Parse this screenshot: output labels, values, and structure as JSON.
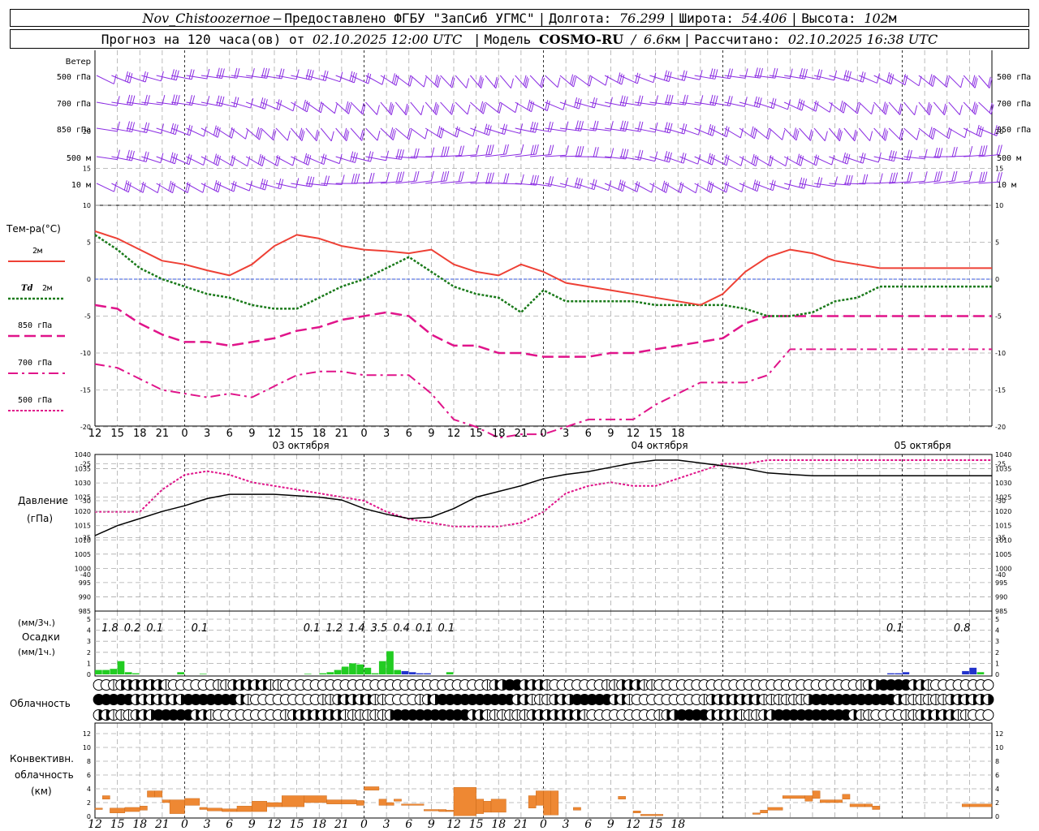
{
  "header": {
    "station": "Nov_Chistoozernoe",
    "dash": "–",
    "provider": "Предоставлено ФГБУ \"ЗапСиб УГМС\"",
    "lon_label": "Долгота:",
    "lon_value": "76.299",
    "lat_label": "Широта:",
    "lat_value": "54.406",
    "alt_label": "Высота:",
    "alt_value": "102",
    "alt_unit": "м",
    "forecast_label": "Прогноз на 120 часа(ов) от",
    "forecast_start": "02.10.2025 12:00 UTC",
    "model_label": "Модель",
    "model_name": "COSMO-RU",
    "model_res": "6.6",
    "model_res_unit": "км",
    "calc_label": "Рассчитано:",
    "calc_time": "02.10.2025 16:38 UTC"
  },
  "colors": {
    "wind": "#8a2be2",
    "t2m": "#ee4035",
    "td2m": "#1a7a1a",
    "t850": "#e0148a",
    "t700": "#e0148a",
    "t500": "#e0148a",
    "zero_line": "#3355dd",
    "pressure": "#000000",
    "precip_rain": "#22cc22",
    "precip_snow": "#2233cc",
    "conv_cloud": "#ee8833",
    "grid": "#aaaaaa"
  },
  "axes": {
    "hour_ticks": [
      "12",
      "15",
      "18",
      "21",
      "0",
      "3",
      "6",
      "9",
      "12",
      "15",
      "18",
      "21",
      "0",
      "3",
      "6",
      "9",
      "12",
      "15",
      "18",
      "21",
      "0",
      "3",
      "6",
      "9",
      "12",
      "15",
      "18"
    ],
    "day_labels": [
      "03 октября",
      "04 октября",
      "05 октября"
    ]
  },
  "wind_panel": {
    "title": "Ветер",
    "levels": [
      "500 гПа",
      "700 гПа",
      "850 гПа",
      "500  м",
      "10   м"
    ]
  },
  "temp_panel": {
    "title": "Тем-ра(°С)",
    "ticks": [
      "20",
      "15",
      "10",
      "5",
      "0",
      "-5",
      "-10",
      "-15",
      "-20",
      "-25",
      "-30",
      "-35",
      "-40"
    ],
    "legend": [
      {
        "label": "2м",
        "key": "t2m"
      },
      {
        "label_em": "Td",
        "label": "2м",
        "key": "td2m"
      },
      {
        "label": "850 гПа",
        "key": "t850"
      },
      {
        "label": "700 гПа",
        "key": "t700"
      },
      {
        "label": "500 гПа",
        "key": "t500"
      }
    ]
  },
  "pressure_panel": {
    "title": "Давление",
    "unit": "(гПа)",
    "ticks": [
      "1040",
      "1035",
      "1030",
      "1025",
      "1020",
      "1015",
      "1010",
      "1005",
      "1000",
      "995",
      "990",
      "985"
    ]
  },
  "precip_panel": {
    "unit3": "(мм/3ч.)",
    "title": "Осадки",
    "unit1": "(мм/1ч.)",
    "ticks": [
      "5",
      "4",
      "3",
      "2",
      "1",
      "0"
    ],
    "labels": [
      {
        "h": 2,
        "text": "1.8"
      },
      {
        "h": 5,
        "text": "0.2"
      },
      {
        "h": 8,
        "text": "0.1"
      },
      {
        "h": 14,
        "text": "0.1"
      },
      {
        "h": 29,
        "text": "0.1"
      },
      {
        "h": 32,
        "text": "1.2"
      },
      {
        "h": 35,
        "text": "1.4"
      },
      {
        "h": 38,
        "text": "3.5"
      },
      {
        "h": 41,
        "text": "0.4"
      },
      {
        "h": 44,
        "text": "0.1"
      },
      {
        "h": 47,
        "text": "0.1"
      },
      {
        "h": 107,
        "text": "0.1"
      },
      {
        "h": 116,
        "text": "0.8"
      }
    ]
  },
  "cloud_panel": {
    "title": "Облачность"
  },
  "conv_panel": {
    "title1": "Конвективн.",
    "title2": "облачность",
    "unit": "(км)",
    "ticks": [
      "12",
      "10",
      "8",
      "6",
      "4",
      "2",
      "0"
    ]
  },
  "chart_data": {
    "type": "meteogram",
    "hours": [
      0,
      3,
      6,
      9,
      12,
      15,
      18,
      21,
      24,
      27,
      30,
      33,
      36,
      39,
      42,
      45,
      48,
      51,
      54,
      57,
      60,
      63,
      66,
      69,
      72,
      75,
      78,
      81,
      84,
      87,
      90,
      93,
      96,
      99,
      102,
      105,
      108,
      111,
      114,
      117,
      120
    ],
    "t2m": [
      6.5,
      5.5,
      4,
      2.5,
      2,
      1.2,
      0.5,
      2,
      4.5,
      6,
      5.5,
      4.5,
      4,
      3.8,
      3.5,
      4,
      2,
      1,
      0.5,
      2,
      1,
      -0.5,
      -1,
      -1.5,
      -2,
      -2.5,
      -3,
      -3.5,
      -2,
      1,
      3,
      4,
      3.5,
      2.5,
      2,
      1.5,
      1.5,
      1.5,
      1.5,
      1.5,
      1.5
    ],
    "td2m": [
      6,
      4,
      1.5,
      0,
      -1,
      -2,
      -2.5,
      -3.5,
      -4,
      -4,
      -2.5,
      -1,
      0,
      1.5,
      3,
      1,
      -1,
      -2,
      -2.5,
      -4.5,
      -1.5,
      -3,
      -3,
      -3,
      -3,
      -3.5,
      -3.5,
      -3.5,
      -3.5,
      -4,
      -5,
      -5,
      -4.5,
      -3,
      -2.5,
      -1,
      -1,
      -1,
      -1,
      -1,
      -1
    ],
    "t850": [
      -3.5,
      -4,
      -6,
      -7.5,
      -8.5,
      -8.5,
      -9,
      -8.5,
      -8,
      -7,
      -6.5,
      -5.5,
      -5,
      -4.5,
      -5,
      -7.5,
      -9,
      -9,
      -10,
      -10,
      -10.5,
      -10.5,
      -10.5,
      -10,
      -10,
      -9.5,
      -9,
      -8.5,
      -8,
      -6,
      -5,
      -5,
      -5,
      -5,
      -5,
      -5,
      -5,
      -5,
      -5,
      -5,
      -5
    ],
    "t700": [
      -11.5,
      -12,
      -13.5,
      -15,
      -15.5,
      -16,
      -15.5,
      -16,
      -14.5,
      -13,
      -12.5,
      -12.5,
      -13,
      -13,
      -13,
      -15.5,
      -19,
      -20,
      -21.5,
      -21,
      -21,
      -20,
      -19,
      -19,
      -19,
      -17,
      -15.5,
      -14,
      -14,
      -14,
      -13,
      -9.5,
      -9.5,
      -9.5,
      -9.5,
      -9.5,
      -9.5,
      -9.5,
      -9.5,
      -9.5,
      -9.5
    ],
    "t500": [
      -31.5,
      -31.5,
      -31.5,
      -28.5,
      -26.5,
      -26,
      -26.5,
      -27.5,
      -28,
      -28.5,
      -29,
      -29.5,
      -30,
      -31.5,
      -32.5,
      -33,
      -33.5,
      -33.5,
      -33.5,
      -33,
      -31.5,
      -29,
      -28,
      -27.5,
      -28,
      -28,
      -27,
      -26,
      -25,
      -25,
      -24.5,
      -24.5,
      -24.5,
      -24.5,
      -24.5,
      -24.5,
      -24.5,
      -24.5,
      -24.5,
      -24.5,
      -24.5
    ],
    "pressure": [
      1011.5,
      1015,
      1017.5,
      1020,
      1022,
      1024.5,
      1026,
      1026,
      1026,
      1025.5,
      1025,
      1024,
      1021,
      1019,
      1017.5,
      1018,
      1021,
      1025,
      1027,
      1029,
      1031.5,
      1033,
      1034,
      1035.5,
      1037,
      1038,
      1038,
      1037,
      1036,
      1035,
      1033.5,
      1033,
      1032.5,
      1032.5,
      1032.5,
      1032.5,
      1032.5,
      1032.5,
      1032.5,
      1032.5,
      1032.5
    ],
    "precip_1h": [
      {
        "h": 0,
        "v": 0.4,
        "type": "rain"
      },
      {
        "h": 1,
        "v": 0.4,
        "type": "rain"
      },
      {
        "h": 2,
        "v": 0.5,
        "type": "rain"
      },
      {
        "h": 3,
        "v": 1.2,
        "type": "rain"
      },
      {
        "h": 4,
        "v": 0.2,
        "type": "rain"
      },
      {
        "h": 5,
        "v": 0.1,
        "type": "rain"
      },
      {
        "h": 11,
        "v": 0.2,
        "type": "rain"
      },
      {
        "h": 14,
        "v": 0.05,
        "type": "rain"
      },
      {
        "h": 28,
        "v": 0.05,
        "type": "rain"
      },
      {
        "h": 30,
        "v": 0.1,
        "type": "rain"
      },
      {
        "h": 31,
        "v": 0.2,
        "type": "rain"
      },
      {
        "h": 32,
        "v": 0.4,
        "type": "rain"
      },
      {
        "h": 33,
        "v": 0.7,
        "type": "rain"
      },
      {
        "h": 34,
        "v": 1.0,
        "type": "rain"
      },
      {
        "h": 35,
        "v": 0.9,
        "type": "rain"
      },
      {
        "h": 36,
        "v": 0.6,
        "type": "rain"
      },
      {
        "h": 37,
        "v": 0.1,
        "type": "rain"
      },
      {
        "h": 38,
        "v": 1.2,
        "type": "rain"
      },
      {
        "h": 39,
        "v": 2.1,
        "type": "rain"
      },
      {
        "h": 40,
        "v": 0.4,
        "type": "rain"
      },
      {
        "h": 41,
        "v": 0.3,
        "type": "snow"
      },
      {
        "h": 42,
        "v": 0.2,
        "type": "snow"
      },
      {
        "h": 43,
        "v": 0.1,
        "type": "snow"
      },
      {
        "h": 44,
        "v": 0.1,
        "type": "snow"
      },
      {
        "h": 47,
        "v": 0.2,
        "type": "rain"
      },
      {
        "h": 106,
        "v": 0.1,
        "type": "snow"
      },
      {
        "h": 107,
        "v": 0.1,
        "type": "snow"
      },
      {
        "h": 108,
        "v": 0.2,
        "type": "snow"
      },
      {
        "h": 116,
        "v": 0.3,
        "type": "snow"
      },
      {
        "h": 117,
        "v": 0.6,
        "type": "snow"
      },
      {
        "h": 118,
        "v": 0.2,
        "type": "rain"
      }
    ],
    "conv_cloud": [
      {
        "h0": 0,
        "h1": 1,
        "top": 1.2,
        "base": 1.0
      },
      {
        "h0": 1,
        "h1": 2,
        "top": 3.0,
        "base": 2.5
      },
      {
        "h0": 2,
        "h1": 4,
        "top": 1.2,
        "base": 0.5
      },
      {
        "h0": 4,
        "h1": 6,
        "top": 1.3,
        "base": 0.7
      },
      {
        "h0": 6,
        "h1": 7,
        "top": 1.5,
        "base": 0.9
      },
      {
        "h0": 7,
        "h1": 8,
        "top": 3.7,
        "base": 2.8
      },
      {
        "h0": 8,
        "h1": 9,
        "top": 3.7,
        "base": 2.8
      },
      {
        "h0": 9,
        "h1": 10,
        "top": 2.4,
        "base": 2.0
      },
      {
        "h0": 10,
        "h1": 12,
        "top": 2.4,
        "base": 0.4
      },
      {
        "h0": 12,
        "h1": 14,
        "top": 2.6,
        "base": 1.6
      },
      {
        "h0": 14,
        "h1": 15,
        "top": 1.3,
        "base": 1.0
      },
      {
        "h0": 15,
        "h1": 17,
        "top": 1.2,
        "base": 0.8
      },
      {
        "h0": 17,
        "h1": 19,
        "top": 1.1,
        "base": 0.7
      },
      {
        "h0": 19,
        "h1": 21,
        "top": 1.5,
        "base": 0.7
      },
      {
        "h0": 21,
        "h1": 23,
        "top": 2.2,
        "base": 0.7
      },
      {
        "h0": 23,
        "h1": 25,
        "top": 2.0,
        "base": 1.4
      },
      {
        "h0": 25,
        "h1": 28,
        "top": 3.0,
        "base": 1.4
      },
      {
        "h0": 28,
        "h1": 31,
        "top": 3.0,
        "base": 2.0
      },
      {
        "h0": 31,
        "h1": 33,
        "top": 2.4,
        "base": 1.8
      },
      {
        "h0": 33,
        "h1": 35,
        "top": 2.4,
        "base": 1.8
      },
      {
        "h0": 35,
        "h1": 36,
        "top": 2.3,
        "base": 1.6
      },
      {
        "h0": 36,
        "h1": 38,
        "top": 4.3,
        "base": 3.8
      },
      {
        "h0": 38,
        "h1": 39,
        "top": 2.5,
        "base": 1.6
      },
      {
        "h0": 39,
        "h1": 40,
        "top": 2.0,
        "base": 1.6
      },
      {
        "h0": 40,
        "h1": 41,
        "top": 2.5,
        "base": 2.2
      },
      {
        "h0": 41,
        "h1": 44,
        "top": 1.8,
        "base": 1.6
      },
      {
        "h0": 44,
        "h1": 46,
        "top": 1.0,
        "base": 0.8
      },
      {
        "h0": 46,
        "h1": 47,
        "top": 1.0,
        "base": 0.7
      },
      {
        "h0": 47,
        "h1": 48,
        "top": 0.9,
        "base": 0.7
      },
      {
        "h0": 48,
        "h1": 51,
        "top": 4.2,
        "base": 0.1
      },
      {
        "h0": 51,
        "h1": 52,
        "top": 2.5,
        "base": 0.4
      },
      {
        "h0": 52,
        "h1": 53,
        "top": 2.2,
        "base": 0.6
      },
      {
        "h0": 53,
        "h1": 55,
        "top": 2.5,
        "base": 0.6
      },
      {
        "h0": 58,
        "h1": 59,
        "top": 3.0,
        "base": 1.2
      },
      {
        "h0": 59,
        "h1": 60,
        "top": 3.7,
        "base": 1.6
      },
      {
        "h0": 60,
        "h1": 61,
        "top": 3.7,
        "base": 0.2
      },
      {
        "h0": 61,
        "h1": 62,
        "top": 3.7,
        "base": 0.2
      },
      {
        "h0": 64,
        "h1": 65,
        "top": 1.3,
        "base": 0.9
      },
      {
        "h0": 70,
        "h1": 71,
        "top": 2.9,
        "base": 2.5
      },
      {
        "h0": 72,
        "h1": 73,
        "top": 0.8,
        "base": 0.5
      },
      {
        "h0": 73,
        "h1": 76,
        "top": 0.3,
        "base": 0.1
      },
      {
        "h0": 88,
        "h1": 89,
        "top": 0.5,
        "base": 0.3
      },
      {
        "h0": 89,
        "h1": 90,
        "top": 0.9,
        "base": 0.5
      },
      {
        "h0": 90,
        "h1": 92,
        "top": 1.3,
        "base": 0.9
      },
      {
        "h0": 92,
        "h1": 95,
        "top": 3.0,
        "base": 2.6
      },
      {
        "h0": 95,
        "h1": 96,
        "top": 3.0,
        "base": 2.2
      },
      {
        "h0": 96,
        "h1": 97,
        "top": 3.7,
        "base": 2.6
      },
      {
        "h0": 97,
        "h1": 99,
        "top": 2.4,
        "base": 2.0
      },
      {
        "h0": 99,
        "h1": 100,
        "top": 2.4,
        "base": 2.0
      },
      {
        "h0": 100,
        "h1": 101,
        "top": 3.2,
        "base": 2.5
      },
      {
        "h0": 101,
        "h1": 103,
        "top": 1.8,
        "base": 1.4
      },
      {
        "h0": 103,
        "h1": 104,
        "top": 1.8,
        "base": 1.4
      },
      {
        "h0": 104,
        "h1": 105,
        "top": 1.5,
        "base": 1.0
      },
      {
        "h0": 116,
        "h1": 117,
        "top": 1.8,
        "base": 1.4
      },
      {
        "h0": 117,
        "h1": 120,
        "top": 1.8,
        "base": 1.4
      }
    ]
  }
}
